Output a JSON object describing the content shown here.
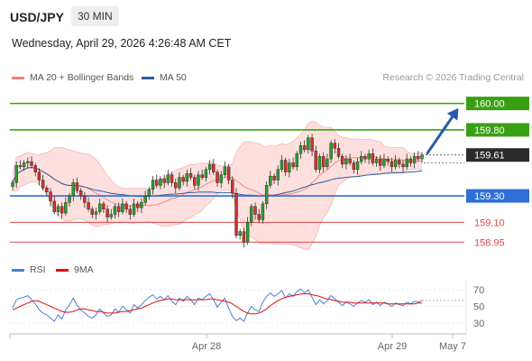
{
  "header": {
    "symbol": "USD/JPY",
    "timeframe": "30 MIN",
    "datetime": "Wednesday, April 29, 2026 4:26:48 AM CET",
    "copyright": "Research © 2026 Trading Central"
  },
  "legend": {
    "bollinger_label": "MA 20 + Bollinger Bands",
    "bollinger_color": "#f08080",
    "ma50_label": "MA 50",
    "ma50_color": "#2e5a9c",
    "rsi_label": "RSI",
    "rsi_color": "#4a7fd4",
    "ma9_label": "9MA",
    "ma9_color": "#dd1111"
  },
  "chart_data": [
    {
      "type": "candlestick",
      "title": "USD/JPY 30 MIN",
      "ylim": [
        158.87,
        160.1
      ],
      "x_ticks": [
        "Apr 28",
        "Apr 29",
        "May 7"
      ],
      "current_price": "159.61",
      "levels": [
        {
          "price": 160.0,
          "label": "160.00",
          "kind": "resistance",
          "color": "#3aa013",
          "labeled_box": true
        },
        {
          "price": 159.8,
          "label": "159.80",
          "kind": "resistance",
          "color": "#3aa013",
          "labeled_box": true
        },
        {
          "price": 159.3,
          "label": "159.30",
          "kind": "pivot",
          "color": "#2f6fd8",
          "labeled_box": true
        },
        {
          "price": 159.1,
          "label": "159.10",
          "kind": "support",
          "color": "#e24444",
          "labeled_box": false
        },
        {
          "price": 158.95,
          "label": "158.95",
          "kind": "support",
          "color": "#e24444",
          "labeled_box": false
        }
      ],
      "candles_close": [
        159.4,
        159.53,
        159.52,
        159.55,
        159.56,
        159.53,
        159.48,
        159.42,
        159.36,
        159.33,
        159.26,
        159.18,
        159.22,
        159.17,
        159.25,
        159.3,
        159.4,
        159.34,
        159.3,
        159.25,
        159.2,
        159.16,
        159.18,
        159.24,
        159.2,
        159.14,
        159.16,
        159.22,
        159.18,
        159.24,
        159.2,
        159.16,
        159.24,
        159.21,
        159.25,
        159.3,
        159.35,
        159.42,
        159.38,
        159.43,
        159.4,
        159.46,
        159.4,
        159.36,
        159.44,
        159.41,
        159.47,
        159.44,
        159.38,
        159.46,
        159.44,
        159.5,
        159.54,
        159.48,
        159.4,
        159.46,
        159.52,
        159.42,
        159.32,
        159.0,
        159.03,
        158.95,
        159.1,
        159.22,
        159.16,
        159.12,
        159.24,
        159.38,
        159.45,
        159.42,
        159.5,
        159.57,
        159.48,
        159.55,
        159.52,
        159.62,
        159.68,
        159.65,
        159.74,
        159.64,
        159.5,
        159.6,
        159.52,
        159.58,
        159.7,
        159.66,
        159.6,
        159.54,
        159.58,
        159.55,
        159.5,
        159.56,
        159.6,
        159.58,
        159.62,
        159.55,
        159.58,
        159.53,
        159.58,
        159.56,
        159.52,
        159.57,
        159.54,
        159.52,
        159.58,
        159.55,
        159.6,
        159.58,
        159.61
      ]
    },
    {
      "type": "line",
      "title": "RSI",
      "ylim": [
        25,
        75
      ],
      "y_ticks": [
        "70",
        "50",
        "30"
      ],
      "series": [
        {
          "name": "RSI",
          "values": [
            48,
            58,
            60,
            61,
            63,
            58,
            53,
            46,
            42,
            40,
            36,
            32,
            40,
            35,
            46,
            52,
            60,
            51,
            46,
            42,
            38,
            36,
            40,
            47,
            42,
            38,
            40,
            47,
            43,
            50,
            46,
            42,
            52,
            48,
            52,
            57,
            61,
            64,
            59,
            62,
            58,
            63,
            56,
            52,
            60,
            56,
            62,
            58,
            52,
            60,
            58,
            62,
            65,
            58,
            49,
            55,
            60,
            48,
            38,
            33,
            36,
            32,
            42,
            50,
            46,
            44,
            55,
            62,
            66,
            62,
            65,
            69,
            60,
            65,
            62,
            68,
            71,
            66,
            70,
            61,
            52,
            58,
            53,
            57,
            63,
            59,
            55,
            51,
            55,
            53,
            50,
            54,
            57,
            55,
            58,
            52,
            55,
            51,
            55,
            53,
            50,
            54,
            52,
            51,
            55,
            53,
            56,
            55,
            57
          ]
        },
        {
          "name": "9MA",
          "values": [
            46,
            48,
            50,
            52,
            54,
            56,
            57,
            56,
            54,
            52,
            50,
            48,
            46,
            44,
            43,
            43,
            44,
            46,
            47,
            47,
            46,
            45,
            44,
            44,
            43,
            42,
            42,
            42,
            43,
            44,
            44,
            45,
            46,
            47,
            48,
            50,
            52,
            54,
            56,
            57,
            58,
            59,
            59,
            58,
            58,
            58,
            58,
            58,
            58,
            58,
            58,
            58,
            59,
            59,
            58,
            57,
            56,
            55,
            53,
            50,
            47,
            44,
            42,
            41,
            41,
            42,
            44,
            47,
            51,
            54,
            57,
            59,
            61,
            62,
            63,
            64,
            65,
            65,
            65,
            64,
            63,
            62,
            60,
            59,
            58,
            57,
            56,
            55,
            55,
            55,
            54,
            54,
            54,
            54,
            54,
            54,
            54,
            54,
            54,
            53,
            53,
            53,
            53,
            53,
            53,
            53,
            53,
            54,
            54
          ]
        }
      ]
    }
  ]
}
